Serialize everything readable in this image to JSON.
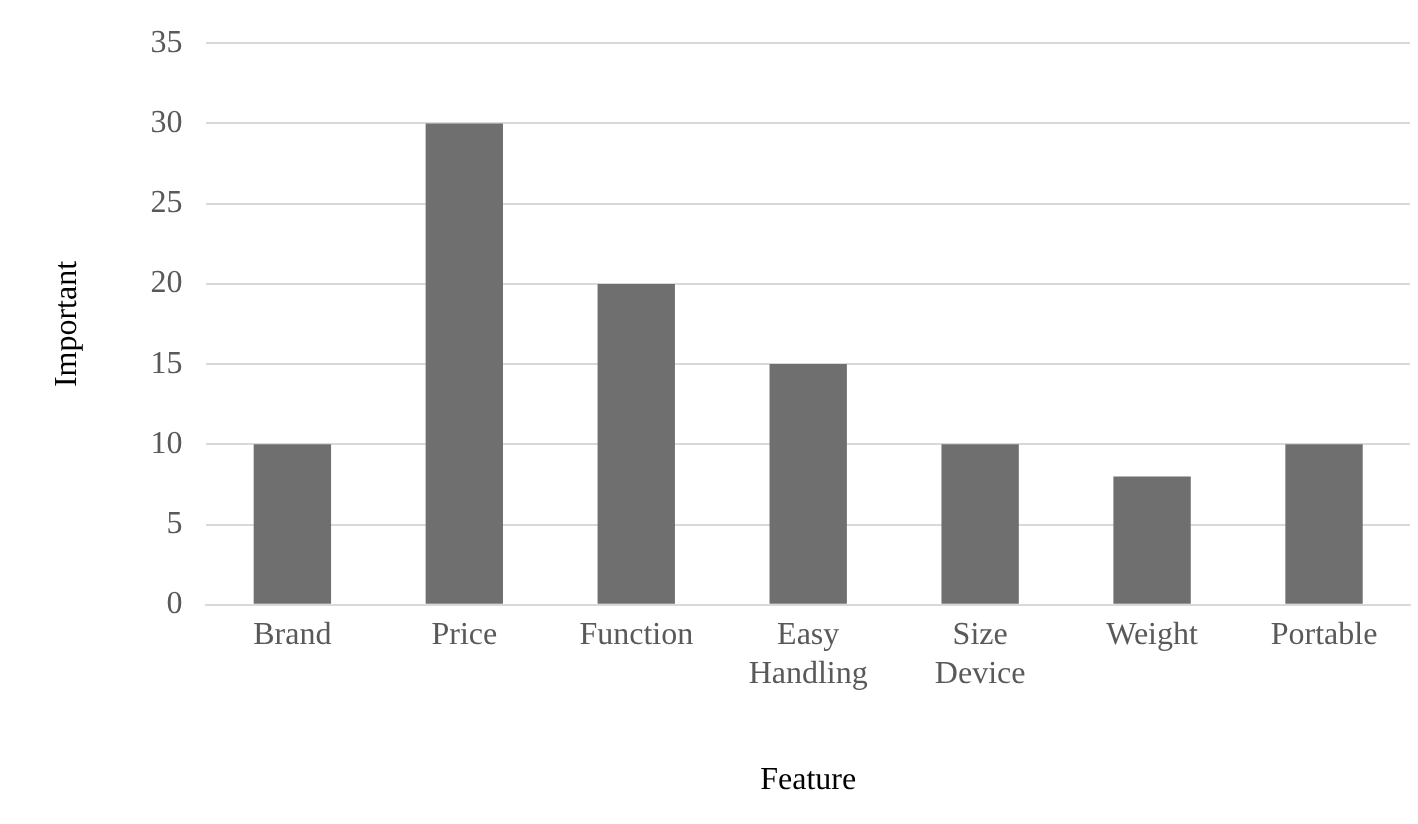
{
  "chart_data": {
    "type": "bar",
    "xlabel": "Feature",
    "ylabel": "Important",
    "categories": [
      "Brand",
      "Price",
      "Function",
      "Easy Handling",
      "Size Device",
      "Weight",
      "Portable"
    ],
    "values": [
      10,
      30,
      20,
      15,
      10,
      8,
      10
    ],
    "color": "#6f6f6f",
    "ylim": [
      0,
      35
    ],
    "yticks": [
      0,
      5,
      10,
      15,
      20,
      25,
      30,
      35
    ],
    "grid": "y",
    "legend": false
  }
}
